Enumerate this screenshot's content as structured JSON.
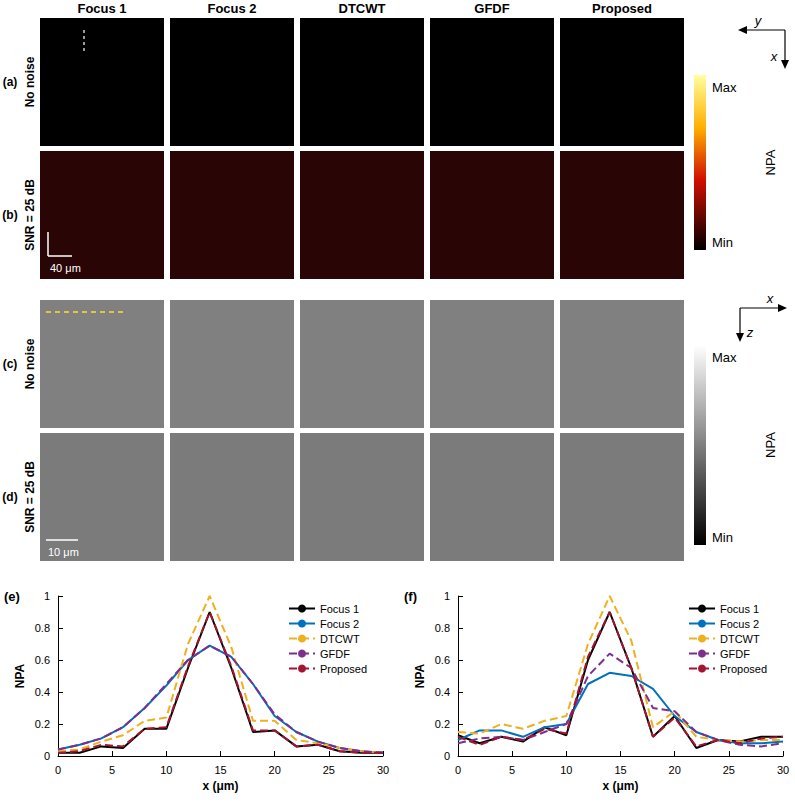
{
  "figure": {
    "columns": [
      "Focus 1",
      "Focus 2",
      "DTCWT",
      "GFDF",
      "Proposed"
    ],
    "rows": [
      {
        "panel": "(a)",
        "label": "No noise"
      },
      {
        "panel": "(b)",
        "label": "SNR = 25 dB"
      },
      {
        "panel": "(c)",
        "label": "No noise"
      },
      {
        "panel": "(d)",
        "label": "SNR = 25 dB"
      }
    ],
    "colorbar": {
      "label": "NPA",
      "max": "Max",
      "min": "Min"
    },
    "scale_bars": [
      "40 μm",
      "10 μm"
    ],
    "direction_labels": [
      [
        "y",
        "x"
      ],
      [
        "x",
        "z"
      ]
    ]
  },
  "chart_data": [
    {
      "type": "line",
      "title": "(e)",
      "xlabel": "x (μm)",
      "ylabel": "NPA",
      "x": [
        0,
        2,
        4,
        6,
        8,
        10,
        12,
        14,
        16,
        18,
        20,
        22,
        24,
        26,
        28,
        30
      ],
      "xlim": [
        0,
        30
      ],
      "xticks": [
        0,
        5,
        10,
        15,
        20,
        25,
        30
      ],
      "ylim": [
        0,
        1
      ],
      "yticks": [
        0,
        0.2,
        0.4,
        0.6,
        0.8,
        1
      ],
      "legend": "upper right",
      "series": [
        {
          "name": "Focus 1",
          "color": "#000000",
          "line_style": "solid",
          "values": [
            0.02,
            0.02,
            0.06,
            0.05,
            0.17,
            0.17,
            0.55,
            0.9,
            0.55,
            0.15,
            0.16,
            0.06,
            0.07,
            0.03,
            0.02,
            0.02
          ]
        },
        {
          "name": "Focus 2",
          "color": "#0072BD",
          "line_style": "solid",
          "values": [
            0.04,
            0.07,
            0.11,
            0.18,
            0.3,
            0.44,
            0.6,
            0.69,
            0.62,
            0.45,
            0.25,
            0.15,
            0.09,
            0.05,
            0.03,
            0.02
          ]
        },
        {
          "name": "DTCWT",
          "color": "#EDB120",
          "line_style": "dashed",
          "values": [
            0.03,
            0.04,
            0.09,
            0.13,
            0.22,
            0.24,
            0.7,
            1.0,
            0.68,
            0.22,
            0.22,
            0.1,
            0.08,
            0.05,
            0.03,
            0.02
          ]
        },
        {
          "name": "GFDF",
          "color": "#7E2F8E",
          "line_style": "dashed",
          "values": [
            0.04,
            0.07,
            0.11,
            0.18,
            0.3,
            0.45,
            0.6,
            0.69,
            0.62,
            0.45,
            0.26,
            0.15,
            0.09,
            0.05,
            0.03,
            0.02
          ]
        },
        {
          "name": "Proposed",
          "color": "#A2142F",
          "line_style": "dashed",
          "values": [
            0.02,
            0.03,
            0.07,
            0.06,
            0.17,
            0.18,
            0.56,
            0.9,
            0.56,
            0.16,
            0.16,
            0.06,
            0.07,
            0.03,
            0.02,
            0.02
          ]
        }
      ]
    },
    {
      "type": "line",
      "title": "(f)",
      "xlabel": "x (μm)",
      "ylabel": "NPA",
      "x": [
        0,
        2,
        4,
        6,
        8,
        10,
        12,
        14,
        16,
        18,
        20,
        22,
        24,
        26,
        28,
        30
      ],
      "xlim": [
        0,
        30
      ],
      "xticks": [
        0,
        5,
        10,
        15,
        20,
        25,
        30
      ],
      "ylim": [
        0,
        1
      ],
      "yticks": [
        0,
        0.2,
        0.4,
        0.6,
        0.8,
        1
      ],
      "legend": "upper right",
      "series": [
        {
          "name": "Focus 1",
          "color": "#000000",
          "line_style": "solid",
          "values": [
            0.13,
            0.08,
            0.12,
            0.09,
            0.18,
            0.13,
            0.6,
            0.9,
            0.55,
            0.12,
            0.25,
            0.05,
            0.1,
            0.09,
            0.12,
            0.12
          ]
        },
        {
          "name": "Focus 2",
          "color": "#0072BD",
          "line_style": "solid",
          "values": [
            0.1,
            0.16,
            0.16,
            0.12,
            0.18,
            0.2,
            0.45,
            0.52,
            0.5,
            0.42,
            0.25,
            0.15,
            0.1,
            0.08,
            0.08,
            0.09
          ]
        },
        {
          "name": "DTCWT",
          "color": "#EDB120",
          "line_style": "dashed",
          "values": [
            0.15,
            0.14,
            0.2,
            0.17,
            0.22,
            0.25,
            0.7,
            1.0,
            0.72,
            0.18,
            0.28,
            0.12,
            0.1,
            0.09,
            0.1,
            0.1
          ]
        },
        {
          "name": "GFDF",
          "color": "#7E2F8E",
          "line_style": "dashed",
          "values": [
            0.08,
            0.11,
            0.12,
            0.1,
            0.15,
            0.2,
            0.5,
            0.64,
            0.55,
            0.3,
            0.28,
            0.15,
            0.1,
            0.07,
            0.06,
            0.08
          ]
        },
        {
          "name": "Proposed",
          "color": "#A2142F",
          "line_style": "dashed",
          "values": [
            0.12,
            0.07,
            0.12,
            0.1,
            0.17,
            0.14,
            0.62,
            0.9,
            0.55,
            0.12,
            0.24,
            0.06,
            0.1,
            0.08,
            0.11,
            0.12
          ]
        }
      ]
    }
  ]
}
